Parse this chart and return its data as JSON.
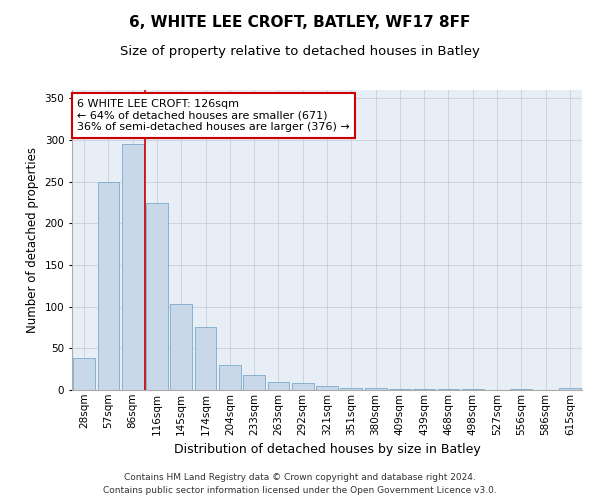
{
  "title1": "6, WHITE LEE CROFT, BATLEY, WF17 8FF",
  "title2": "Size of property relative to detached houses in Batley",
  "xlabel": "Distribution of detached houses by size in Batley",
  "ylabel": "Number of detached properties",
  "categories": [
    "28sqm",
    "57sqm",
    "86sqm",
    "116sqm",
    "145sqm",
    "174sqm",
    "204sqm",
    "233sqm",
    "263sqm",
    "292sqm",
    "321sqm",
    "351sqm",
    "380sqm",
    "409sqm",
    "439sqm",
    "468sqm",
    "498sqm",
    "527sqm",
    "556sqm",
    "586sqm",
    "615sqm"
  ],
  "values": [
    38,
    250,
    295,
    225,
    103,
    76,
    30,
    18,
    10,
    9,
    5,
    3,
    2,
    1.5,
    1.5,
    1,
    1,
    0.5,
    1,
    0.5,
    2
  ],
  "bar_color": "#c8d8e8",
  "bar_edge_color": "#7aaac8",
  "vline_color": "#cc0000",
  "annotation_text": "6 WHITE LEE CROFT: 126sqm\n← 64% of detached houses are smaller (671)\n36% of semi-detached houses are larger (376) →",
  "annotation_box_color": "#ffffff",
  "annotation_box_edge": "#cc0000",
  "ylim": [
    0,
    360
  ],
  "yticks": [
    0,
    50,
    100,
    150,
    200,
    250,
    300,
    350
  ],
  "grid_color": "#c8d0dc",
  "footnote": "Contains HM Land Registry data © Crown copyright and database right 2024.\nContains public sector information licensed under the Open Government Licence v3.0.",
  "title1_fontsize": 11,
  "title2_fontsize": 9.5,
  "xlabel_fontsize": 9,
  "ylabel_fontsize": 8.5,
  "tick_fontsize": 7.5,
  "annotation_fontsize": 8,
  "footnote_fontsize": 6.5
}
